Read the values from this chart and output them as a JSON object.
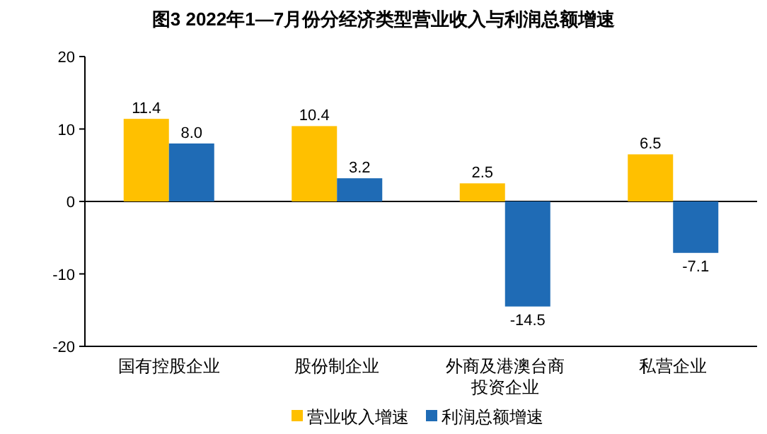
{
  "chart_data": {
    "type": "bar",
    "title": "图3  2022年1—7月份分经济类型营业收入与利润总额增速",
    "categories": [
      "国有控股企业",
      "股份制企业",
      "外商及港澳台商投资企业",
      "私营企业"
    ],
    "series": [
      {
        "name": "营业收入增速",
        "color": "#ffc000",
        "values": [
          11.4,
          10.4,
          2.5,
          6.5
        ],
        "value_labels": [
          "11.4",
          "10.4",
          "2.5",
          "6.5"
        ]
      },
      {
        "name": "利润总额增速",
        "color": "#1f6bb5",
        "values": [
          8.0,
          3.2,
          -14.5,
          -7.1
        ],
        "value_labels": [
          "8.0",
          "3.2",
          "-14.5",
          "-7.1"
        ]
      }
    ],
    "ylim": [
      -20,
      20
    ],
    "yticks": [
      -20,
      -10,
      0,
      10,
      20
    ],
    "legend": "bottom"
  }
}
